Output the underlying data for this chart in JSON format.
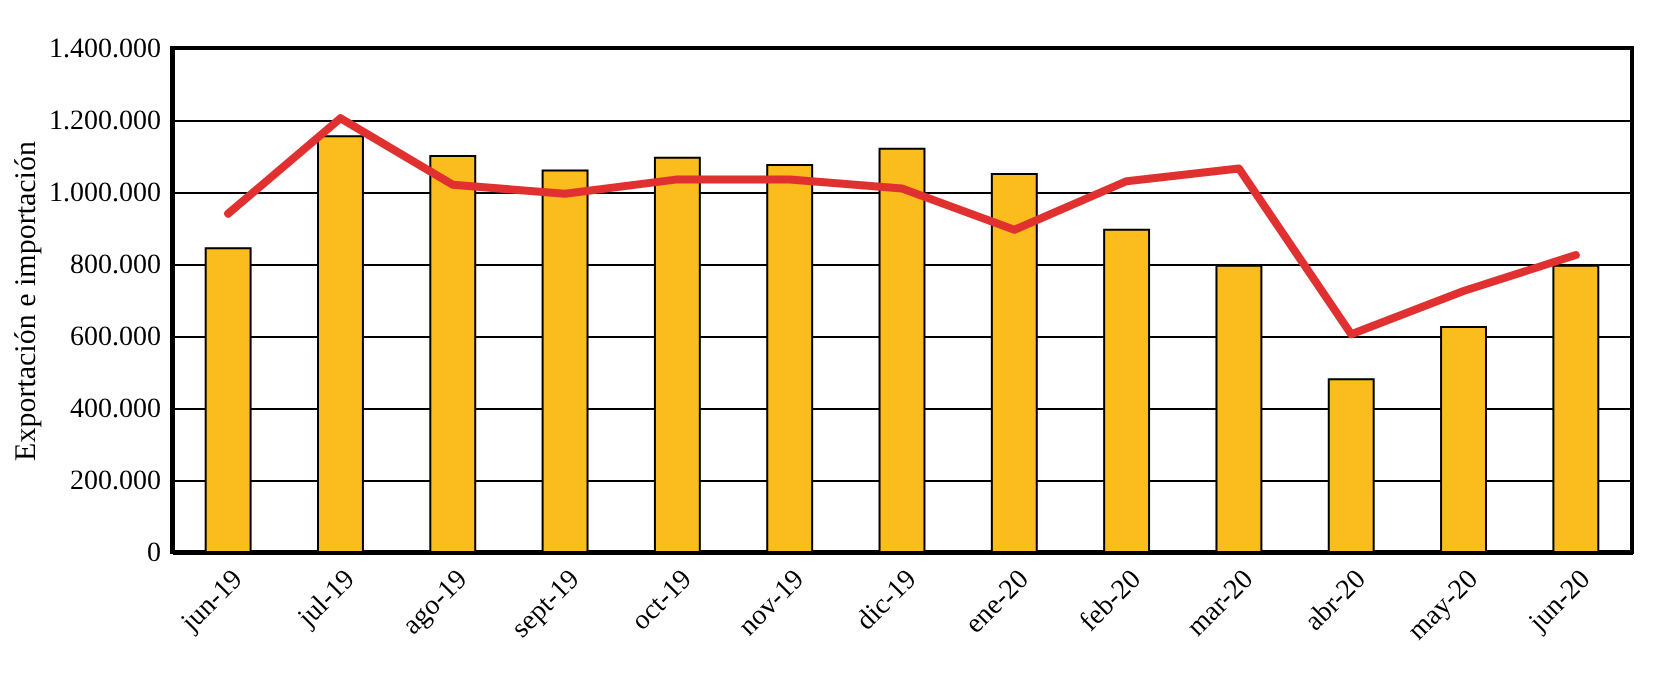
{
  "chart_data": {
    "type": "bar",
    "ylabel": "Exportación e importación",
    "categories": [
      "jun-19",
      "jul-19",
      "ago-19",
      "sept-19",
      "oct-19",
      "nov-19",
      "dic-19",
      "ene-20",
      "feb-20",
      "mar-20",
      "abr-20",
      "may-20",
      "jun-20"
    ],
    "series": [
      {
        "color": "#fbbc1e",
        "values": [
          844000,
          1155000,
          1100000,
          1060000,
          1095000,
          1075000,
          1120000,
          1050000,
          895000,
          795000,
          480000,
          625000,
          795000
        ]
      },
      {
        "type": "line",
        "color": "#e03030",
        "values": [
          940000,
          1205000,
          1020000,
          995000,
          1035000,
          1035000,
          1010000,
          895000,
          1030000,
          1065000,
          605000,
          725000,
          825000
        ]
      }
    ],
    "ylim": [
      0,
      1400000
    ],
    "yticks": [
      {
        "value": 0,
        "label": "0"
      },
      {
        "value": 200000,
        "label": "200.000"
      },
      {
        "value": 400000,
        "label": "400.000"
      },
      {
        "value": 600000,
        "label": "600.000"
      },
      {
        "value": 800000,
        "label": "800.000"
      },
      {
        "value": 1000000,
        "label": "1.000.000"
      },
      {
        "value": 1200000,
        "label": "1.200.000"
      },
      {
        "value": 1400000,
        "label": "1.400.000"
      }
    ],
    "grid": "y",
    "marker": "none",
    "line_style": "solid"
  }
}
